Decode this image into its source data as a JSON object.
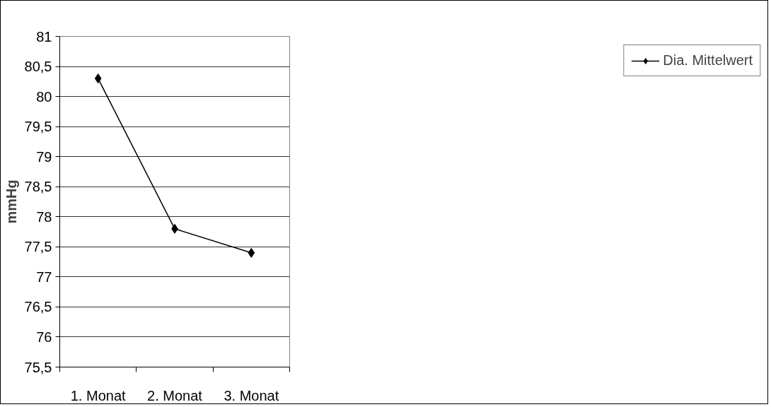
{
  "chart_data": {
    "type": "line",
    "ylabel": "mmHg",
    "categories": [
      "1. Monat",
      "2. Monat",
      "3. Monat"
    ],
    "series": [
      {
        "name": "Dia. Mittelwert",
        "color": "#000000",
        "values": [
          80.3,
          77.8,
          77.4
        ]
      }
    ],
    "ylim": [
      75.5,
      81
    ],
    "yticks": [
      {
        "value": 75.5,
        "label": "75,5"
      },
      76,
      {
        "value": 76.5,
        "label": "76,5"
      },
      77,
      {
        "value": 77.5,
        "label": "77,5"
      },
      78,
      {
        "value": 78.5,
        "label": "78,5"
      },
      79,
      {
        "value": 79.5,
        "label": "79,5"
      },
      80,
      {
        "value": 80.5,
        "label": "80,5"
      },
      81
    ],
    "grid": "y",
    "legend": "right",
    "marker": "diamond",
    "line_style": "solid"
  }
}
